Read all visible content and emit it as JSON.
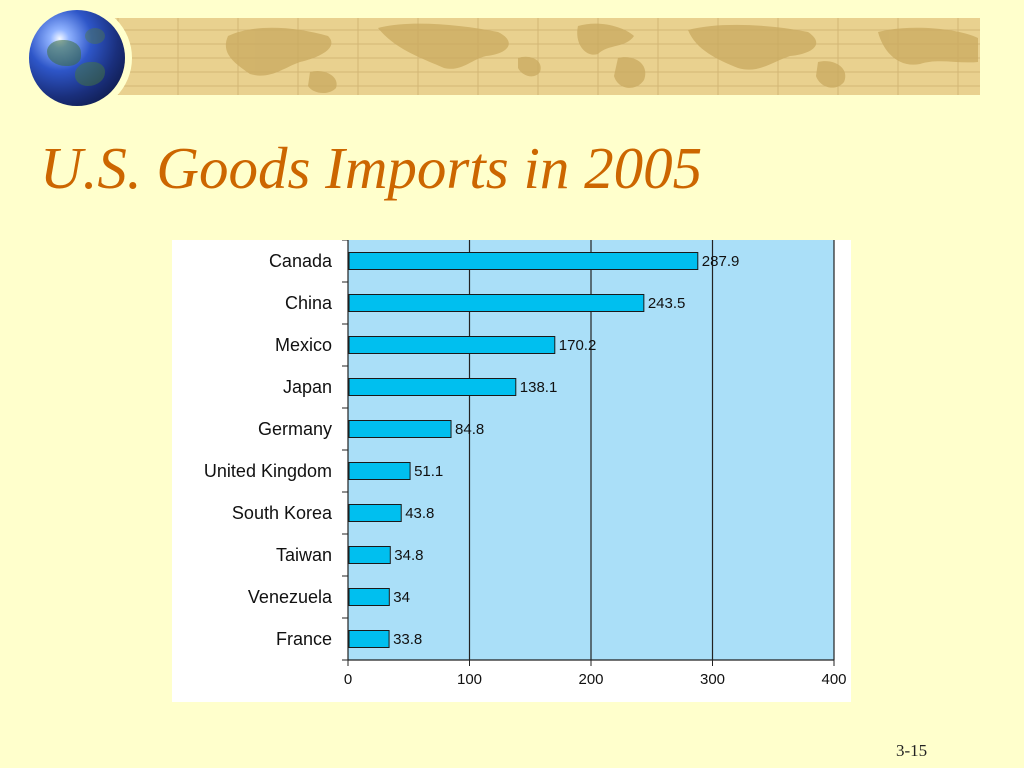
{
  "slide": {
    "title": "U.S. Goods Imports in 2005",
    "number": "3-15"
  },
  "decor": {
    "globe": "globe-icon",
    "banner": "world-map-banner"
  },
  "colors": {
    "background": "#ffffcc",
    "title": "#cc6600",
    "banner": "#e9d18f",
    "plot_area": "#aadff8",
    "bar": "#00bfef"
  },
  "chart_data": {
    "type": "bar",
    "orientation": "horizontal",
    "title": "",
    "xlabel": "",
    "ylabel": "",
    "categories": [
      "Canada",
      "China",
      "Mexico",
      "Japan",
      "Germany",
      "United Kingdom",
      "South Korea",
      "Taiwan",
      "Venezuela",
      "France"
    ],
    "values": [
      287.9,
      243.5,
      170.2,
      138.1,
      84.8,
      51.1,
      43.8,
      34.8,
      34,
      33.8
    ],
    "value_labels": [
      "287.9",
      "243.5",
      "170.2",
      "138.1",
      "84.8",
      "51.1",
      "43.8",
      "34.8",
      "34",
      "33.8"
    ],
    "xlim": [
      0,
      400
    ],
    "xticks": [
      0,
      100,
      200,
      300,
      400
    ],
    "xtick_labels": [
      "0",
      "100",
      "200",
      "300",
      "400"
    ],
    "grid": "vertical",
    "legend": "none"
  }
}
